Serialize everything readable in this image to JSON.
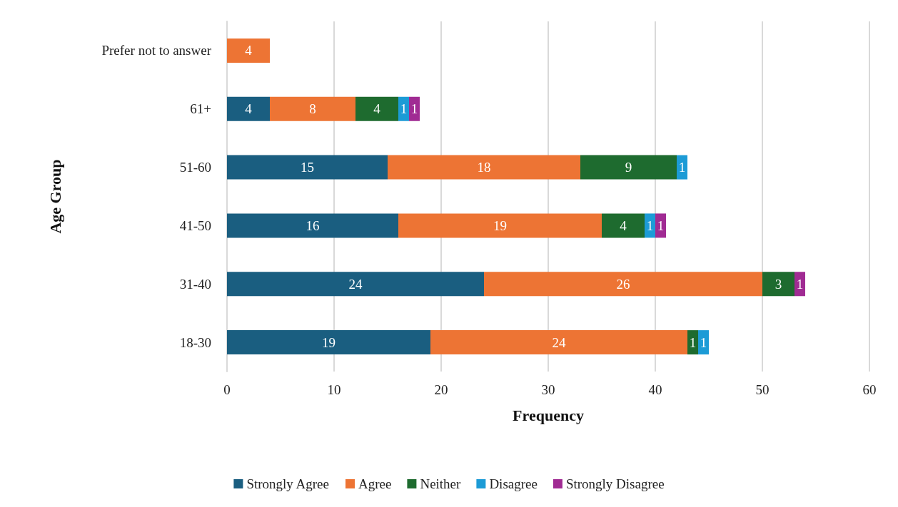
{
  "chart_data": {
    "type": "bar",
    "orientation": "horizontal",
    "stacked": true,
    "data_labels": true,
    "xlabel": "Frequency",
    "ylabel": "Age Group",
    "categories": [
      "Prefer not to answer",
      "61+",
      "51-60",
      "41-50",
      "31-40",
      "18-30"
    ],
    "series": [
      {
        "name": "Strongly Agree",
        "color": "#1a5e80",
        "values": [
          null,
          4,
          15,
          16,
          24,
          19
        ]
      },
      {
        "name": "Agree",
        "color": "#ed7434",
        "values": [
          4,
          8,
          18,
          19,
          26,
          24
        ]
      },
      {
        "name": "Neither",
        "color": "#1e6b2f",
        "values": [
          null,
          4,
          9,
          4,
          3,
          1
        ]
      },
      {
        "name": "Disagree",
        "color": "#1c9bd6",
        "values": [
          null,
          1,
          1,
          1,
          null,
          1
        ]
      },
      {
        "name": "Strongly Disagree",
        "color": "#a02b93",
        "values": [
          null,
          1,
          null,
          1,
          1,
          null
        ]
      }
    ],
    "xlim": [
      0,
      60
    ],
    "xticks": [
      0,
      10,
      20,
      30,
      40,
      50,
      60
    ],
    "grid": "x",
    "legend": "bottom"
  }
}
